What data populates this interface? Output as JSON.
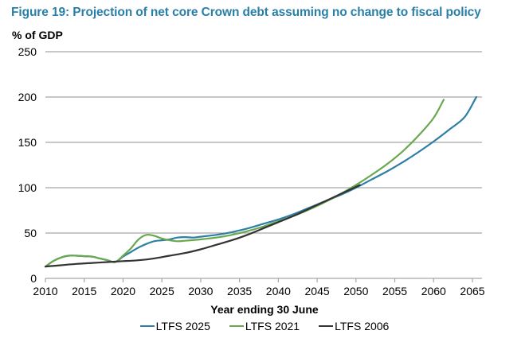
{
  "chart_data": {
    "type": "line",
    "title": "Figure 19: Projection of net core Crown debt assuming no change to fiscal policy",
    "ylabel": "% of GDP",
    "xlabel": "Year ending 30 June",
    "xlim": [
      2010,
      2065
    ],
    "ylim": [
      0,
      250
    ],
    "xticks": [
      "2010",
      "2015",
      "2020",
      "2025",
      "2030",
      "2035",
      "2040",
      "2045",
      "2050",
      "2055",
      "2060",
      "2065"
    ],
    "yticks": [
      "0",
      "50",
      "100",
      "150",
      "200",
      "250"
    ],
    "grid": "horizontal",
    "legend": "bottom",
    "series": [
      {
        "name": "LTFS 2025",
        "color": "#2e7fa6",
        "x": [
          2010,
          2011,
          2012,
          2013,
          2014,
          2015,
          2016,
          2017,
          2018,
          2019,
          2020,
          2021,
          2022,
          2023,
          2024,
          2025,
          2026,
          2027,
          2028,
          2029,
          2030,
          2032,
          2034,
          2036,
          2038,
          2040,
          2042,
          2044,
          2046,
          2048,
          2050,
          2052,
          2054,
          2056,
          2058,
          2060,
          2062,
          2064,
          2065.5
        ],
        "y": [
          13,
          19,
          23,
          25,
          25,
          24.5,
          24,
          22,
          20,
          18,
          24,
          29,
          34,
          38,
          41,
          42,
          43,
          45,
          45.5,
          45,
          46,
          48,
          51,
          55,
          60,
          65,
          71,
          78,
          85,
          92,
          100,
          109,
          118,
          128,
          139,
          151,
          164,
          178,
          200
        ]
      },
      {
        "name": "LTFS 2021",
        "color": "#6aa84f",
        "x": [
          2010,
          2011,
          2012,
          2013,
          2014,
          2015,
          2016,
          2017,
          2018,
          2019,
          2020,
          2021,
          2022,
          2023,
          2024,
          2025,
          2026,
          2027,
          2028,
          2030,
          2032,
          2034,
          2036,
          2038,
          2040,
          2042,
          2044,
          2046,
          2048,
          2050,
          2052,
          2054,
          2056,
          2058,
          2060,
          2061.3
        ],
        "y": [
          13,
          19,
          23,
          25,
          25,
          24.5,
          24,
          22,
          20,
          18,
          25,
          33,
          43,
          48,
          47,
          44,
          42,
          41,
          41.5,
          43,
          45,
          48,
          52,
          57,
          63,
          69,
          76,
          84,
          93,
          103,
          114,
          126,
          140,
          157,
          177,
          197
        ]
      },
      {
        "name": "LTFS 2006",
        "color": "#333333",
        "x": [
          2010,
          2012,
          2014,
          2016,
          2018,
          2020,
          2022,
          2024,
          2026,
          2028,
          2030,
          2032,
          2034,
          2036,
          2038,
          2040,
          2042,
          2044,
          2046,
          2048,
          2050.5
        ],
        "y": [
          13,
          14.5,
          16,
          17,
          18,
          19,
          20,
          22,
          25,
          28,
          32,
          37,
          42,
          48,
          55,
          62,
          69,
          77,
          85,
          93,
          103
        ]
      }
    ]
  }
}
